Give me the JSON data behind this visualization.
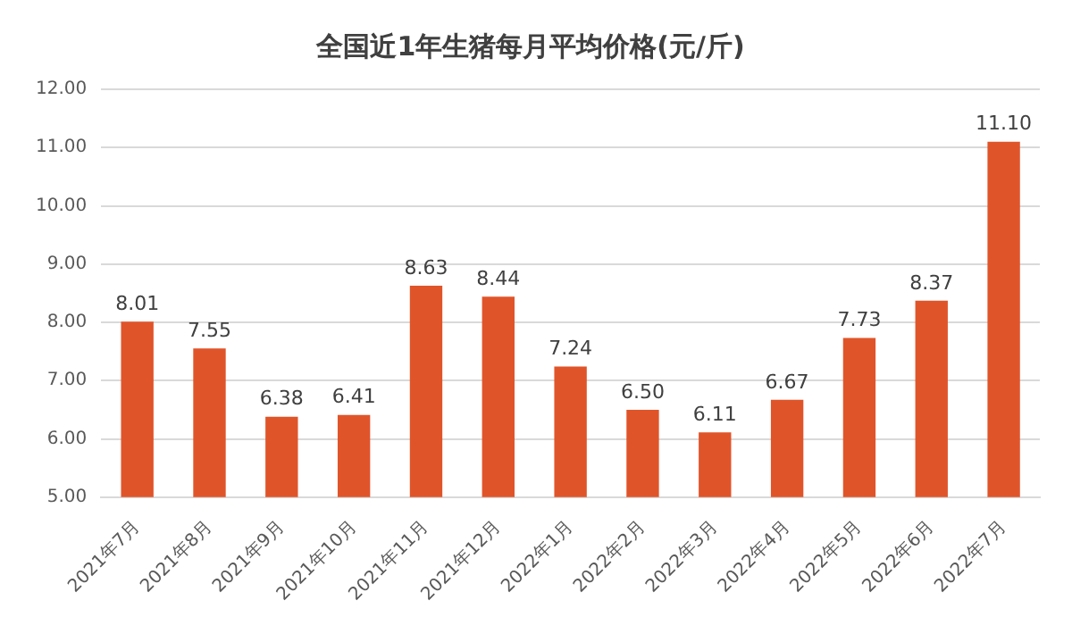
{
  "chart_data": {
    "type": "bar",
    "title": "全国近1年生猪每月平均价格(元/斤)",
    "categories": [
      "2021年7月",
      "2021年8月",
      "2021年9月",
      "2021年10月",
      "2021年11月",
      "2021年12月",
      "2022年1月",
      "2022年2月",
      "2022年3月",
      "2022年4月",
      "2022年5月",
      "2022年6月",
      "2022年7月"
    ],
    "values": [
      8.01,
      7.55,
      6.38,
      6.41,
      8.63,
      8.44,
      7.24,
      6.5,
      6.11,
      6.67,
      7.73,
      8.37,
      11.1
    ],
    "value_labels": [
      "8.01",
      "7.55",
      "6.38",
      "6.41",
      "8.63",
      "8.44",
      "7.24",
      "6.50",
      "6.11",
      "6.67",
      "7.73",
      "8.37",
      "11.10"
    ],
    "color": "#e0542a",
    "ylim": [
      5,
      12
    ],
    "yticks": [
      {
        "value": 5,
        "label": "5.00"
      },
      {
        "value": 6,
        "label": "6.00"
      },
      {
        "value": 7,
        "label": "7.00"
      },
      {
        "value": 8,
        "label": "8.00"
      },
      {
        "value": 9,
        "label": "9.00"
      },
      {
        "value": 10,
        "label": "10.00"
      },
      {
        "value": 11,
        "label": "11.00"
      },
      {
        "value": 12,
        "label": "12.00"
      }
    ],
    "grid": "y",
    "legend": false
  }
}
